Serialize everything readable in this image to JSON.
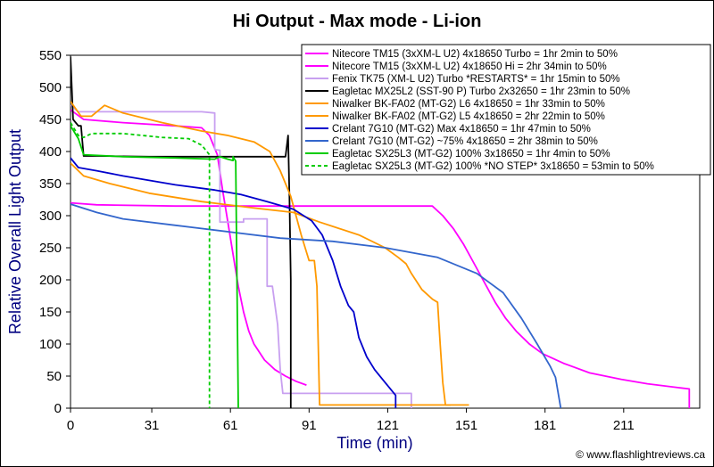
{
  "chart_data": {
    "type": "line",
    "title": "Hi Output - Max mode - Li-ion",
    "xlabel": "Time (min)",
    "ylabel": "Relative Overall Light Output",
    "xlim": [
      0,
      240
    ],
    "ylim": [
      0,
      550
    ],
    "x_ticks": [
      "0",
      "31",
      "61",
      "91",
      "121",
      "151",
      "181",
      "211"
    ],
    "x_tick_values": [
      0,
      31,
      61,
      91,
      121,
      151,
      181,
      211
    ],
    "y_ticks": [
      "0",
      "50",
      "100",
      "150",
      "200",
      "250",
      "300",
      "350",
      "400",
      "450",
      "500",
      "550"
    ],
    "y_tick_values": [
      0,
      50,
      100,
      150,
      200,
      250,
      300,
      350,
      400,
      450,
      500,
      550
    ],
    "grid": false,
    "legend_position": "top-right",
    "credit": "© www.flashlightreviews.ca",
    "series": [
      {
        "name": "Nitecore TM15 (3xXM-L U2) 4x18650 Turbo = 1hr 2min to 50%",
        "color": "#ff00ff",
        "dash": false,
        "points": [
          [
            0,
            465
          ],
          [
            5,
            450
          ],
          [
            20,
            445
          ],
          [
            40,
            440
          ],
          [
            50,
            437
          ],
          [
            53,
            425
          ],
          [
            56,
            395
          ],
          [
            58,
            340
          ],
          [
            60,
            290
          ],
          [
            62,
            240
          ],
          [
            64,
            190
          ],
          [
            66,
            150
          ],
          [
            68,
            120
          ],
          [
            70,
            100
          ],
          [
            74,
            75
          ],
          [
            78,
            60
          ],
          [
            82,
            50
          ],
          [
            86,
            42
          ],
          [
            90,
            36
          ]
        ]
      },
      {
        "name": "Nitecore TM15 (3xXM-L U2) 4x18650 Hi = 2hr 34min to 50%",
        "color": "#ff00ff",
        "dash": false,
        "points": [
          [
            0,
            320
          ],
          [
            10,
            317
          ],
          [
            40,
            315
          ],
          [
            80,
            315
          ],
          [
            120,
            315
          ],
          [
            138,
            315
          ],
          [
            142,
            300
          ],
          [
            146,
            280
          ],
          [
            150,
            255
          ],
          [
            154,
            225
          ],
          [
            158,
            195
          ],
          [
            162,
            165
          ],
          [
            166,
            140
          ],
          [
            170,
            120
          ],
          [
            175,
            100
          ],
          [
            180,
            85
          ],
          [
            188,
            70
          ],
          [
            198,
            55
          ],
          [
            210,
            45
          ],
          [
            220,
            38
          ],
          [
            232,
            32
          ],
          [
            236,
            30
          ],
          [
            236,
            0
          ]
        ]
      },
      {
        "name": "Fenix TK75 (XM-L U2) Turbo *RESTARTS* = 1hr 15min to 50%",
        "color": "#c8a0f0",
        "dash": false,
        "points": [
          [
            0,
            472
          ],
          [
            3,
            462
          ],
          [
            10,
            462
          ],
          [
            30,
            462
          ],
          [
            50,
            462
          ],
          [
            55,
            460
          ],
          [
            55,
            403
          ],
          [
            57,
            402
          ],
          [
            57,
            290
          ],
          [
            60,
            290
          ],
          [
            64,
            290
          ],
          [
            66,
            290
          ],
          [
            66,
            295
          ],
          [
            73,
            295
          ],
          [
            75,
            295
          ],
          [
            75,
            190
          ],
          [
            77,
            190
          ],
          [
            79,
            130
          ],
          [
            80,
            60
          ],
          [
            81,
            23
          ],
          [
            95,
            23
          ],
          [
            110,
            23
          ],
          [
            125,
            23
          ],
          [
            130,
            23
          ],
          [
            130,
            0
          ]
        ]
      },
      {
        "name": "Eagletac MX25L2 (SST-90 P) Turbo 2x32650 = 1hr 23min to 50%",
        "color": "#000000",
        "dash": false,
        "points": [
          [
            0,
            548
          ],
          [
            1,
            450
          ],
          [
            3,
            440
          ],
          [
            4,
            440
          ],
          [
            5,
            393
          ],
          [
            10,
            393
          ],
          [
            30,
            392
          ],
          [
            60,
            392
          ],
          [
            78,
            392
          ],
          [
            82,
            392
          ],
          [
            83,
            425
          ],
          [
            83.5,
            330
          ],
          [
            84,
            200
          ],
          [
            84,
            0
          ]
        ]
      },
      {
        "name": "Niwalker BK-FA02 (MT-G2) L6 4x18650 = 1hr 33min to 50%",
        "color": "#ff9900",
        "dash": false,
        "points": [
          [
            0,
            478
          ],
          [
            4,
            455
          ],
          [
            8,
            455
          ],
          [
            13,
            472
          ],
          [
            20,
            460
          ],
          [
            35,
            445
          ],
          [
            50,
            432
          ],
          [
            60,
            425
          ],
          [
            70,
            415
          ],
          [
            76,
            400
          ],
          [
            80,
            370
          ],
          [
            84,
            330
          ],
          [
            88,
            270
          ],
          [
            91,
            230
          ],
          [
            93,
            230
          ],
          [
            94,
            190
          ],
          [
            95,
            5
          ],
          [
            110,
            5
          ],
          [
            130,
            5
          ],
          [
            145,
            5
          ]
        ]
      },
      {
        "name": "Niwalker BK-FA02 (MT-G2) L5 4x18650 = 2hr 22min to 50%",
        "color": "#ff9900",
        "dash": false,
        "points": [
          [
            0,
            382
          ],
          [
            5,
            362
          ],
          [
            15,
            350
          ],
          [
            30,
            335
          ],
          [
            50,
            322
          ],
          [
            70,
            312
          ],
          [
            85,
            305
          ],
          [
            95,
            290
          ],
          [
            110,
            270
          ],
          [
            120,
            250
          ],
          [
            125,
            235
          ],
          [
            128,
            225
          ],
          [
            130,
            210
          ],
          [
            134,
            185
          ],
          [
            138,
            170
          ],
          [
            140,
            165
          ],
          [
            141,
            100
          ],
          [
            142,
            40
          ],
          [
            143,
            5
          ],
          [
            148,
            5
          ],
          [
            152,
            5
          ]
        ]
      },
      {
        "name": "Crelant 7G10 (MT-G2) Max 4x18650 = 1hr 47min to 50%",
        "color": "#0000cc",
        "dash": false,
        "points": [
          [
            0,
            390
          ],
          [
            3,
            375
          ],
          [
            10,
            370
          ],
          [
            20,
            362
          ],
          [
            30,
            355
          ],
          [
            40,
            348
          ],
          [
            55,
            340
          ],
          [
            65,
            333
          ],
          [
            75,
            322
          ],
          [
            85,
            310
          ],
          [
            92,
            292
          ],
          [
            96,
            270
          ],
          [
            100,
            230
          ],
          [
            103,
            190
          ],
          [
            106,
            160
          ],
          [
            108,
            150
          ],
          [
            110,
            110
          ],
          [
            113,
            80
          ],
          [
            116,
            60
          ],
          [
            120,
            40
          ],
          [
            124,
            20
          ],
          [
            124,
            0
          ]
        ]
      },
      {
        "name": "Crelant 7G10 (MT-G2) ~75% 4x18650 = 2hr 38min to 50%",
        "color": "#3366cc",
        "dash": false,
        "points": [
          [
            0,
            318
          ],
          [
            10,
            305
          ],
          [
            20,
            295
          ],
          [
            40,
            285
          ],
          [
            60,
            275
          ],
          [
            80,
            265
          ],
          [
            100,
            260
          ],
          [
            120,
            250
          ],
          [
            140,
            235
          ],
          [
            155,
            210
          ],
          [
            165,
            180
          ],
          [
            172,
            140
          ],
          [
            178,
            100
          ],
          [
            183,
            65
          ],
          [
            185,
            48
          ],
          [
            187,
            0
          ]
        ]
      },
      {
        "name": "Eagletac SX25L3 (MT-G2) 100% 3x18650 = 1hr 4min to 50%",
        "color": "#00cc00",
        "dash": false,
        "points": [
          [
            0,
            440
          ],
          [
            3,
            420
          ],
          [
            5,
            395
          ],
          [
            20,
            392
          ],
          [
            40,
            390
          ],
          [
            55,
            388
          ],
          [
            57,
            392
          ],
          [
            60,
            388
          ],
          [
            62,
            386
          ],
          [
            62,
            392
          ],
          [
            63,
            385
          ],
          [
            64,
            0
          ]
        ]
      },
      {
        "name": "Eagletac SX25L3 (MT-G2) 100% *NO STEP* 3x18650 = 53min to 50%",
        "color": "#00cc00",
        "dash": true,
        "points": [
          [
            0,
            445
          ],
          [
            3,
            425
          ],
          [
            5,
            422
          ],
          [
            8,
            428
          ],
          [
            20,
            428
          ],
          [
            35,
            422
          ],
          [
            45,
            420
          ],
          [
            50,
            410
          ],
          [
            53,
            395
          ],
          [
            53,
            0
          ]
        ]
      }
    ]
  }
}
